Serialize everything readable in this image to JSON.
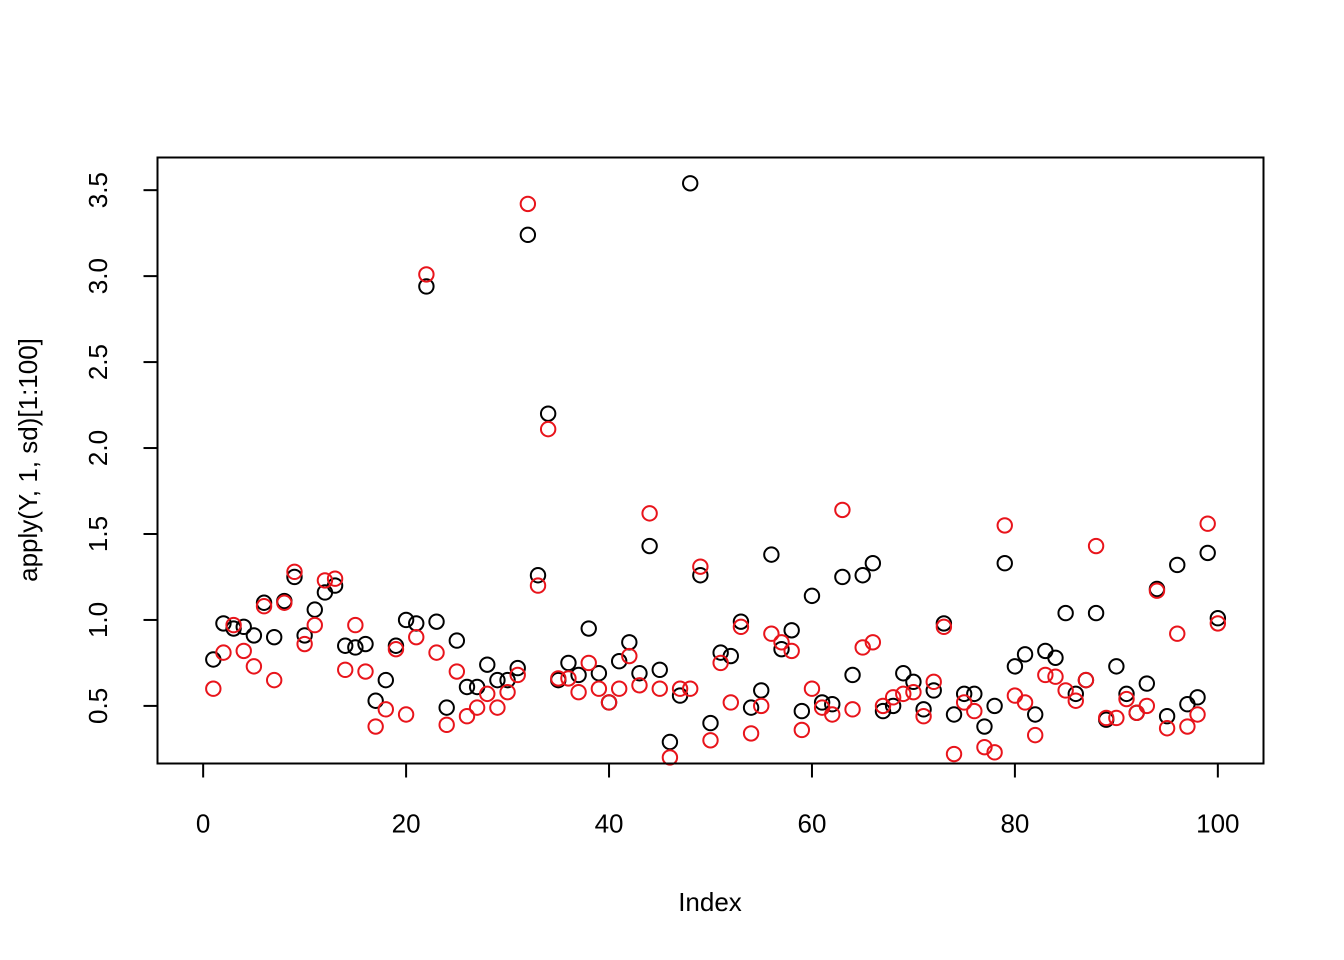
{
  "chart_data": {
    "type": "scatter",
    "title": "",
    "xlabel": "Index",
    "ylabel": "apply(Y, 1, sd)[1:100]",
    "xlim": [
      -4.5,
      104.5
    ],
    "ylim": [
      0.165,
      3.69
    ],
    "x_ticks": [
      0,
      20,
      40,
      60,
      80,
      100
    ],
    "x_tick_labels": [
      "0",
      "20",
      "40",
      "60",
      "80",
      "100"
    ],
    "y_ticks": [
      0.5,
      1.0,
      1.5,
      2.0,
      2.5,
      3.0,
      3.5
    ],
    "y_tick_labels": [
      "0.5",
      "1.0",
      "1.5",
      "2.0",
      "2.5",
      "3.0",
      "3.5"
    ],
    "grid": false,
    "legend": "none",
    "series": [
      {
        "color": "#000000",
        "marker": "open-circle",
        "x": [
          1,
          2,
          3,
          4,
          5,
          6,
          7,
          8,
          9,
          10,
          11,
          12,
          13,
          14,
          15,
          16,
          17,
          18,
          19,
          20,
          21,
          22,
          23,
          24,
          25,
          26,
          27,
          28,
          29,
          30,
          31,
          32,
          33,
          34,
          35,
          36,
          37,
          38,
          39,
          40,
          41,
          42,
          43,
          44,
          45,
          46,
          47,
          48,
          49,
          50,
          51,
          52,
          53,
          54,
          55,
          56,
          57,
          58,
          59,
          60,
          61,
          62,
          63,
          64,
          65,
          66,
          67,
          68,
          69,
          70,
          71,
          72,
          73,
          74,
          75,
          76,
          77,
          78,
          79,
          80,
          81,
          82,
          83,
          84,
          85,
          86,
          87,
          88,
          89,
          90,
          91,
          92,
          93,
          94,
          95,
          96,
          97,
          98,
          99,
          100
        ],
        "y": [
          0.77,
          0.98,
          0.95,
          0.96,
          0.91,
          1.1,
          0.9,
          1.11,
          1.25,
          0.91,
          1.06,
          1.16,
          1.2,
          0.85,
          0.84,
          0.86,
          0.53,
          0.65,
          0.85,
          1.0,
          0.98,
          2.94,
          0.99,
          0.49,
          0.88,
          0.61,
          0.61,
          0.74,
          0.65,
          0.65,
          0.72,
          3.24,
          1.26,
          2.2,
          0.65,
          0.75,
          0.68,
          0.95,
          0.69,
          0.52,
          0.76,
          0.87,
          0.69,
          1.43,
          0.71,
          0.29,
          0.56,
          3.54,
          1.26,
          0.4,
          0.81,
          0.79,
          0.99,
          0.49,
          0.59,
          1.38,
          0.83,
          0.94,
          0.47,
          1.14,
          0.52,
          0.51,
          1.25,
          0.68,
          1.26,
          1.33,
          0.47,
          0.5,
          0.69,
          0.64,
          0.48,
          0.59,
          0.98,
          0.45,
          0.57,
          0.57,
          0.38,
          0.5,
          1.33,
          0.73,
          0.8,
          0.45,
          0.82,
          0.78,
          1.04,
          0.57,
          0.65,
          1.04,
          0.42,
          0.73,
          0.57,
          0.46,
          0.63,
          1.18,
          0.44,
          1.32,
          0.51,
          0.55,
          1.39,
          1.01
        ]
      },
      {
        "color": "#e8141b",
        "marker": "open-circle",
        "x": [
          1,
          2,
          3,
          4,
          5,
          6,
          7,
          8,
          9,
          10,
          11,
          12,
          13,
          14,
          15,
          16,
          17,
          18,
          19,
          20,
          21,
          22,
          23,
          24,
          25,
          26,
          27,
          28,
          29,
          30,
          31,
          32,
          33,
          34,
          35,
          36,
          37,
          38,
          39,
          40,
          41,
          42,
          43,
          44,
          45,
          46,
          47,
          48,
          49,
          50,
          51,
          52,
          53,
          54,
          55,
          56,
          57,
          58,
          59,
          60,
          61,
          62,
          63,
          64,
          65,
          66,
          67,
          68,
          69,
          70,
          71,
          72,
          73,
          74,
          75,
          76,
          77,
          78,
          79,
          80,
          81,
          82,
          83,
          84,
          85,
          86,
          87,
          88,
          89,
          90,
          91,
          92,
          93,
          94,
          95,
          96,
          97,
          98,
          99,
          100
        ],
        "y": [
          0.6,
          0.81,
          0.97,
          0.82,
          0.73,
          1.08,
          0.65,
          1.1,
          1.28,
          0.86,
          0.97,
          1.23,
          1.24,
          0.71,
          0.97,
          0.7,
          0.38,
          0.48,
          0.83,
          0.45,
          0.9,
          3.01,
          0.81,
          0.39,
          0.7,
          0.44,
          0.49,
          0.57,
          0.49,
          0.58,
          0.68,
          3.42,
          1.2,
          2.11,
          0.66,
          0.66,
          0.58,
          0.75,
          0.6,
          0.52,
          0.6,
          0.79,
          0.62,
          1.62,
          0.6,
          0.2,
          0.6,
          0.6,
          1.31,
          0.3,
          0.75,
          0.52,
          0.96,
          0.34,
          0.5,
          0.92,
          0.87,
          0.82,
          0.36,
          0.6,
          0.49,
          0.45,
          1.64,
          0.48,
          0.84,
          0.87,
          0.5,
          0.55,
          0.57,
          0.58,
          0.44,
          0.64,
          0.96,
          0.22,
          0.52,
          0.47,
          0.26,
          0.23,
          1.55,
          0.56,
          0.52,
          0.33,
          0.68,
          0.67,
          0.59,
          0.53,
          0.65,
          1.43,
          0.43,
          0.43,
          0.54,
          0.46,
          0.5,
          1.17,
          0.37,
          0.92,
          0.38,
          0.45,
          1.56,
          0.98
        ]
      }
    ]
  }
}
